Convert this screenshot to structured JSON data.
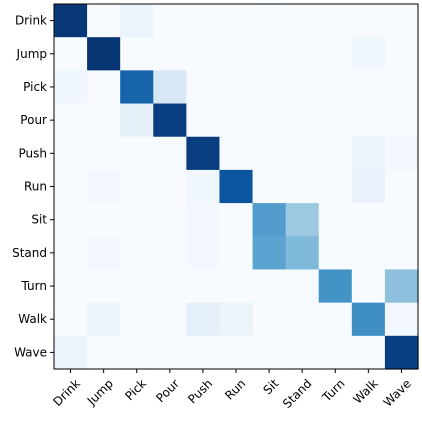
{
  "chart_data": {
    "type": "heatmap",
    "title": "",
    "xlabel": "",
    "ylabel": "",
    "colormap": "Blues",
    "colors": {
      "low": "#f7fbff",
      "high": "#08306b"
    },
    "value_range": [
      0,
      1
    ],
    "row_labels": [
      "Drink",
      "Jump",
      "Pick",
      "Pour",
      "Push",
      "Run",
      "Sit",
      "Stand",
      "Turn",
      "Walk",
      "Wave"
    ],
    "col_labels": [
      "Drink",
      "Jump",
      "Pick",
      "Pour",
      "Push",
      "Run",
      "Sit",
      "Stand",
      "Turn",
      "Walk",
      "Wave"
    ],
    "matrix": [
      [
        0.97,
        0.0,
        0.06,
        0.0,
        0.0,
        0.0,
        0.01,
        0.0,
        0.0,
        0.0,
        0.0
      ],
      [
        0.0,
        0.98,
        0.0,
        0.0,
        0.0,
        0.01,
        0.01,
        0.01,
        0.0,
        0.04,
        0.0
      ],
      [
        0.04,
        0.0,
        0.8,
        0.16,
        0.0,
        0.0,
        0.0,
        0.0,
        0.0,
        0.0,
        0.0
      ],
      [
        0.0,
        0.0,
        0.08,
        0.95,
        0.0,
        0.0,
        0.0,
        0.0,
        0.01,
        0.0,
        0.0
      ],
      [
        0.0,
        0.0,
        0.0,
        0.0,
        0.95,
        0.01,
        0.0,
        0.0,
        0.0,
        0.06,
        0.02
      ],
      [
        0.0,
        0.03,
        0.0,
        0.0,
        0.04,
        0.86,
        0.0,
        0.0,
        0.0,
        0.07,
        0.0
      ],
      [
        0.0,
        0.0,
        0.0,
        0.0,
        0.02,
        0.0,
        0.58,
        0.38,
        0.0,
        0.0,
        0.0
      ],
      [
        0.0,
        0.02,
        0.0,
        0.0,
        0.02,
        0.0,
        0.55,
        0.45,
        0.0,
        0.0,
        0.0
      ],
      [
        0.01,
        0.0,
        0.0,
        0.0,
        0.0,
        0.0,
        0.0,
        0.01,
        0.62,
        0.0,
        0.42
      ],
      [
        0.0,
        0.06,
        0.0,
        0.0,
        0.09,
        0.06,
        0.0,
        0.0,
        0.0,
        0.64,
        0.03
      ],
      [
        0.06,
        0.0,
        0.01,
        0.0,
        0.0,
        0.0,
        0.0,
        0.01,
        0.0,
        0.01,
        0.94
      ]
    ],
    "grid": false,
    "legend": "none"
  }
}
